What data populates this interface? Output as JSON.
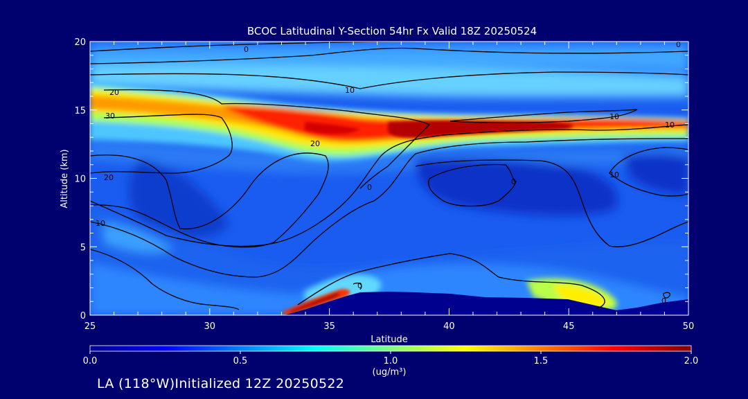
{
  "chart_data": {
    "type": "heatmap",
    "title": "BCOC Latitudinal Y-Section 54hr  Fx Valid 18Z 20250524",
    "xlabel": "Latitude",
    "ylabel": "Altitude (km)",
    "x_range": [
      25,
      50
    ],
    "y_range": [
      0,
      20
    ],
    "x_ticks": [
      "25",
      "30",
      "35",
      "40",
      "45",
      "50"
    ],
    "y_ticks": [
      "0",
      "5",
      "10",
      "15",
      "20"
    ],
    "colorbar": {
      "label": "(ug/m³)",
      "range": [
        0.0,
        2.0
      ],
      "ticks": [
        "0.0",
        "0.5",
        "1.0",
        "1.5",
        "2.0"
      ]
    },
    "plumes": [
      {
        "name": "upper-tropospheric-band",
        "lat": [
          25,
          50
        ],
        "altitude_km": [
          12.5,
          17
        ],
        "peak_value": 2.0,
        "peak_lat": 38.5,
        "peak_alt_km": 13.5
      },
      {
        "name": "surface-source-la",
        "lat": [
          33,
          36
        ],
        "altitude_km": [
          0,
          2
        ],
        "peak_value": 2.0
      },
      {
        "name": "near-surface-east",
        "lat": [
          43,
          48
        ],
        "altitude_km": [
          0,
          3
        ],
        "peak_value": 1.2
      }
    ],
    "contours": {
      "type": "contour",
      "labels": [
        "0",
        "10",
        "20",
        "30",
        "20",
        "10",
        "0",
        "20",
        "10",
        "0",
        "10",
        "10",
        "0",
        "0",
        "0"
      ]
    },
    "terrain_max_km": 1.7
  },
  "footer": {
    "text": "LA (118°W)Initialized 12Z 20250522"
  }
}
